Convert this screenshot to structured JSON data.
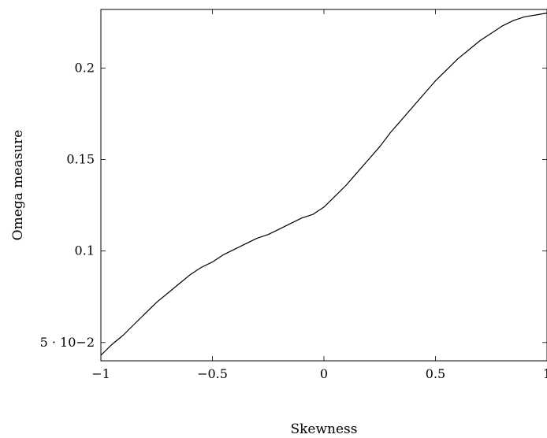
{
  "chart_data": {
    "type": "line",
    "title": "",
    "xlabel": "Skewness",
    "ylabel": "Omega measure",
    "xlim": [
      -1,
      1
    ],
    "ylim": [
      0.04,
      0.232
    ],
    "x_ticks": [
      {
        "value": -1,
        "label": "−1"
      },
      {
        "value": -0.5,
        "label": "−0.5"
      },
      {
        "value": 0,
        "label": "0"
      },
      {
        "value": 0.5,
        "label": "0.5"
      },
      {
        "value": 1,
        "label": "1"
      }
    ],
    "y_ticks": [
      {
        "value": 0.05,
        "label": "5 · 10−2"
      },
      {
        "value": 0.1,
        "label": "0.1"
      },
      {
        "value": 0.15,
        "label": "0.15"
      },
      {
        "value": 0.2,
        "label": "0.2"
      }
    ],
    "grid": false,
    "legend": "none",
    "series": [
      {
        "color": "#000000",
        "x": [
          -1.0,
          -0.95,
          -0.9,
          -0.85,
          -0.8,
          -0.75,
          -0.7,
          -0.65,
          -0.6,
          -0.55,
          -0.5,
          -0.45,
          -0.4,
          -0.35,
          -0.3,
          -0.25,
          -0.2,
          -0.15,
          -0.1,
          -0.05,
          0.0,
          0.05,
          0.1,
          0.15,
          0.2,
          0.25,
          0.3,
          0.35,
          0.4,
          0.45,
          0.5,
          0.55,
          0.6,
          0.65,
          0.7,
          0.75,
          0.8,
          0.85,
          0.9,
          0.95,
          1.0
        ],
        "values": [
          0.043,
          0.049,
          0.054,
          0.06,
          0.066,
          0.072,
          0.077,
          0.082,
          0.087,
          0.091,
          0.094,
          0.098,
          0.101,
          0.104,
          0.107,
          0.109,
          0.112,
          0.115,
          0.118,
          0.12,
          0.124,
          0.13,
          0.136,
          0.143,
          0.15,
          0.157,
          0.165,
          0.172,
          0.179,
          0.186,
          0.193,
          0.199,
          0.205,
          0.21,
          0.215,
          0.219,
          0.223,
          0.226,
          0.228,
          0.229,
          0.23
        ]
      }
    ]
  }
}
